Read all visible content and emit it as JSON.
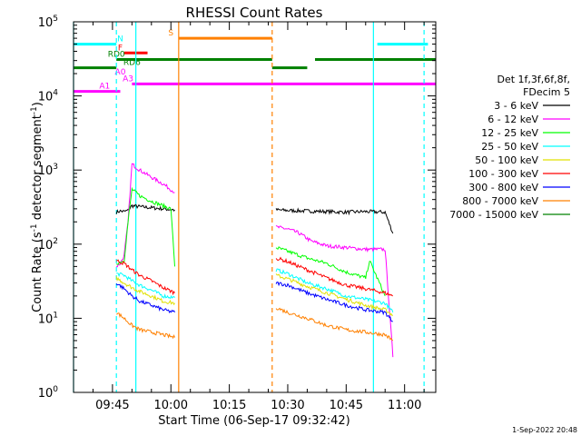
{
  "chart_data": {
    "type": "line",
    "title": "RHESSI Count Rates",
    "xlabel": "Start Time (06-Sep-17 09:32:42)",
    "ylabel": "Count Rate (s⁻¹ detector segment⁻¹)",
    "ylabel_parts": {
      "main": "Count Rate (s",
      "sup1": "-1",
      "mid": " detector segment",
      "sup2": "-1",
      "end": ")"
    },
    "yscale": "log",
    "ylim_exp": [
      0,
      5
    ],
    "xlim": [
      "09:35",
      "11:08"
    ],
    "xticks": [
      "09:45",
      "10:00",
      "10:15",
      "10:30",
      "10:45",
      "11:00"
    ],
    "yticks_exp": [
      0,
      1,
      2,
      3,
      4,
      5
    ],
    "legend_title": [
      "Det 1f,3f,6f,8f,",
      "FDecim 5"
    ],
    "legend_placement": "right",
    "series": [
      {
        "name": "3 - 6 keV",
        "color": "#000000",
        "segments": [
          [
            [
              "09:46",
              270
            ],
            [
              "09:47",
              280
            ],
            [
              "09:48",
              275
            ],
            [
              "09:49",
              285
            ],
            [
              "09:50",
              330
            ],
            [
              "09:52",
              320
            ],
            [
              "09:55",
              310
            ],
            [
              "09:58",
              300
            ],
            [
              "10:01",
              290
            ]
          ],
          [
            [
              "10:27",
              290
            ],
            [
              "10:30",
              285
            ],
            [
              "10:35",
              280
            ],
            [
              "10:40",
              275
            ],
            [
              "10:45",
              270
            ],
            [
              "10:50",
              275
            ],
            [
              "10:55",
              270
            ],
            [
              "10:57",
              140
            ]
          ]
        ]
      },
      {
        "name": "6 - 12 keV",
        "color": "#ff00ff",
        "segments": [
          [
            [
              "09:46",
              50
            ],
            [
              "09:47",
              55
            ],
            [
              "09:48",
              70
            ],
            [
              "09:49",
              200
            ],
            [
              "09:50",
              1200
            ],
            [
              "09:52",
              1000
            ],
            [
              "09:55",
              800
            ],
            [
              "09:58",
              650
            ],
            [
              "10:01",
              500
            ]
          ],
          [
            [
              "10:27",
              170
            ],
            [
              "10:30",
              160
            ],
            [
              "10:33",
              140
            ],
            [
              "10:36",
              110
            ],
            [
              "10:40",
              95
            ],
            [
              "10:45",
              90
            ],
            [
              "10:50",
              85
            ],
            [
              "10:55",
              85
            ],
            [
              "10:57",
              3
            ]
          ]
        ]
      },
      {
        "name": "12 - 25 keV",
        "color": "#00ff00",
        "segments": [
          [
            [
              "09:46",
              55
            ],
            [
              "09:48",
              60
            ],
            [
              "09:49",
              200
            ],
            [
              "09:50",
              550
            ],
            [
              "09:52",
              450
            ],
            [
              "09:55",
              380
            ],
            [
              "09:58",
              330
            ],
            [
              "10:00",
              300
            ],
            [
              "10:01",
              50
            ]
          ],
          [
            [
              "10:27",
              90
            ],
            [
              "10:30",
              80
            ],
            [
              "10:35",
              65
            ],
            [
              "10:40",
              55
            ],
            [
              "10:45",
              42
            ],
            [
              "10:50",
              35
            ],
            [
              "10:51",
              60
            ],
            [
              "10:55",
              20
            ]
          ]
        ]
      },
      {
        "name": "25 - 50 keV",
        "color": "#00ffff",
        "segments": [
          [
            [
              "09:46",
              40
            ],
            [
              "09:48",
              38
            ],
            [
              "09:50",
              32
            ],
            [
              "09:52",
              28
            ],
            [
              "09:55",
              24
            ],
            [
              "09:58",
              20
            ],
            [
              "10:01",
              19
            ]
          ],
          [
            [
              "10:27",
              45
            ],
            [
              "10:30",
              40
            ],
            [
              "10:35",
              30
            ],
            [
              "10:40",
              25
            ],
            [
              "10:45",
              20
            ],
            [
              "10:50",
              18
            ],
            [
              "10:55",
              16
            ],
            [
              "10:57",
              12
            ]
          ]
        ]
      },
      {
        "name": "50 - 100 keV",
        "color": "#e0e000",
        "segments": [
          [
            [
              "09:46",
              35
            ],
            [
              "09:48",
              30
            ],
            [
              "09:50",
              26
            ],
            [
              "09:52",
              23
            ],
            [
              "09:55",
              20
            ],
            [
              "09:58",
              17
            ],
            [
              "10:01",
              16
            ]
          ],
          [
            [
              "10:27",
              38
            ],
            [
              "10:30",
              34
            ],
            [
              "10:35",
              27
            ],
            [
              "10:40",
              22
            ],
            [
              "10:45",
              18
            ],
            [
              "10:50",
              15
            ],
            [
              "10:55",
              13
            ],
            [
              "10:57",
              11
            ]
          ]
        ]
      },
      {
        "name": "100 - 300 keV",
        "color": "#ff0000",
        "segments": [
          [
            [
              "09:46",
              60
            ],
            [
              "09:48",
              55
            ],
            [
              "09:50",
              45
            ],
            [
              "09:52",
              38
            ],
            [
              "09:55",
              32
            ],
            [
              "09:58",
              26
            ],
            [
              "10:01",
              22
            ]
          ],
          [
            [
              "10:27",
              65
            ],
            [
              "10:30",
              58
            ],
            [
              "10:35",
              45
            ],
            [
              "10:40",
              35
            ],
            [
              "10:45",
              28
            ],
            [
              "10:50",
              25
            ],
            [
              "10:55",
              22
            ],
            [
              "10:57",
              20
            ]
          ]
        ]
      },
      {
        "name": "300 - 800 keV",
        "color": "#0000ff",
        "segments": [
          [
            [
              "09:46",
              30
            ],
            [
              "09:48",
              25
            ],
            [
              "09:50",
              20
            ],
            [
              "09:52",
              17
            ],
            [
              "09:55",
              15
            ],
            [
              "09:58",
              13
            ],
            [
              "10:01",
              12
            ]
          ],
          [
            [
              "10:27",
              30
            ],
            [
              "10:30",
              28
            ],
            [
              "10:35",
              22
            ],
            [
              "10:40",
              18
            ],
            [
              "10:45",
              15
            ],
            [
              "10:50",
              13
            ],
            [
              "10:55",
              12
            ],
            [
              "10:57",
              9
            ]
          ]
        ]
      },
      {
        "name": "800 - 7000 keV",
        "color": "#ff8000",
        "segments": [
          [
            [
              "09:46",
              12
            ],
            [
              "09:48",
              10
            ],
            [
              "09:50",
              8
            ],
            [
              "09:52",
              7
            ],
            [
              "09:55",
              6.5
            ],
            [
              "09:58",
              6
            ],
            [
              "10:01",
              5.5
            ]
          ],
          [
            [
              "10:27",
              14
            ],
            [
              "10:30",
              12
            ],
            [
              "10:35",
              10
            ],
            [
              "10:40",
              8
            ],
            [
              "10:45",
              7
            ],
            [
              "10:50",
              6.5
            ],
            [
              "10:55",
              6
            ],
            [
              "10:57",
              5
            ]
          ]
        ]
      },
      {
        "name": "7000 - 15000 keV",
        "color": "#008000",
        "segments": []
      }
    ],
    "flags": [
      {
        "label": "N",
        "color": "#00ffff",
        "y": 50000,
        "segments": [
          [
            "09:35",
            "09:46"
          ],
          [
            "10:53",
            "11:06"
          ]
        ],
        "label_at": "09:47"
      },
      {
        "label": "S",
        "color": "#ff8000",
        "y": 60000,
        "segments": [
          [
            "10:02",
            "10:26"
          ]
        ],
        "label_at": "10:00"
      },
      {
        "label": "F",
        "color": "#ff0000",
        "y": 38000,
        "segments": [
          [
            "09:48",
            "09:54"
          ]
        ],
        "label_at": "09:47"
      },
      {
        "label": "RD0",
        "color": "#008000",
        "y": 31000,
        "segments": [
          [
            "09:46",
            "10:26"
          ],
          [
            "10:26",
            "10:35"
          ],
          [
            "10:37",
            "11:08"
          ]
        ],
        "label_at": "09:46",
        "y_values": [
          31000,
          24000,
          31000
        ]
      },
      {
        "label": "RD6",
        "color": "#008000",
        "y": 24000,
        "segments": [
          [
            "09:35",
            "09:46"
          ]
        ],
        "label_at": "09:50"
      },
      {
        "label": "A0",
        "color": "#ff00ff",
        "y": 18000,
        "segments": [],
        "label_at": "09:47"
      },
      {
        "label": "A1",
        "color": "#ff00ff",
        "y": 11500,
        "segments": [
          [
            "09:35",
            "09:47"
          ]
        ],
        "label_at": "09:43"
      },
      {
        "label": "A3",
        "color": "#ff00ff",
        "y": 14500,
        "segments": [
          [
            "09:50",
            "11:08"
          ]
        ],
        "label_at": "09:49"
      }
    ],
    "vlines": [
      {
        "t": "09:35",
        "color": "#00ffff",
        "style": "solid"
      },
      {
        "t": "09:46",
        "color": "#00ffff",
        "style": "dashed"
      },
      {
        "t": "09:51",
        "color": "#00ffff",
        "style": "solid"
      },
      {
        "t": "10:02",
        "color": "#ff8000",
        "style": "solid"
      },
      {
        "t": "10:26",
        "color": "#ff8000",
        "style": "dashed"
      },
      {
        "t": "10:52",
        "color": "#00ffff",
        "style": "solid"
      },
      {
        "t": "11:05",
        "color": "#00ffff",
        "style": "dashed"
      }
    ]
  },
  "footer": {
    "timestamp": "1-Sep-2022 20:48"
  }
}
